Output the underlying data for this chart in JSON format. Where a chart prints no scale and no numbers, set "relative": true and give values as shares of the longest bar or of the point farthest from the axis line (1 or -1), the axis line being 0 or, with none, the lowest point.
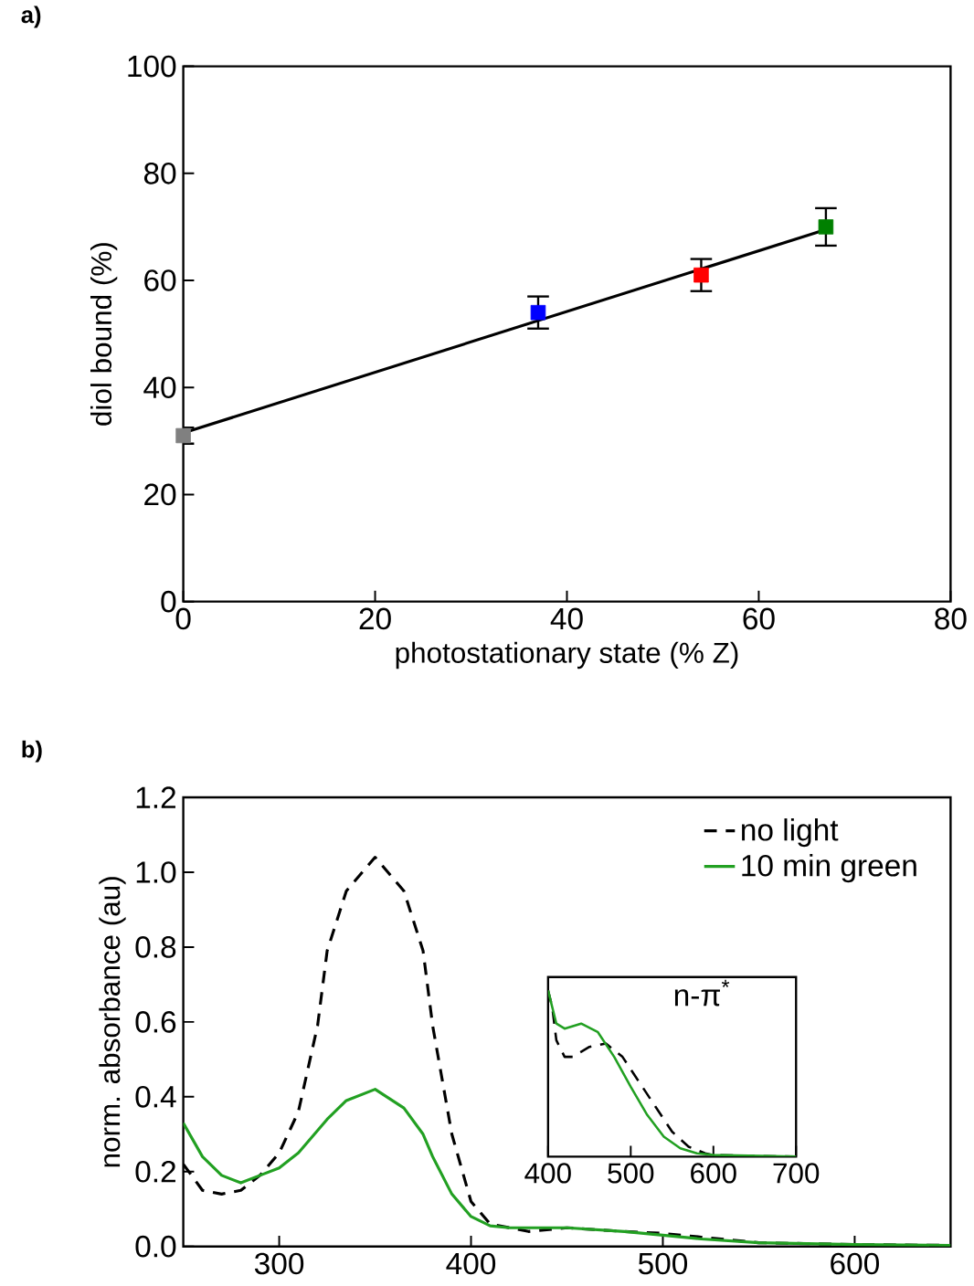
{
  "chart_data": [
    {
      "type": "scatter",
      "title": "a)",
      "xlabel": "photostationary state  (% Z)",
      "ylabel": "diol bound (%)",
      "xlim": [
        0,
        80
      ],
      "ylim": [
        0,
        100
      ],
      "xticks": [
        0,
        20,
        40,
        60,
        80
      ],
      "yticks": [
        0,
        20,
        40,
        60,
        80,
        100
      ],
      "legend": false,
      "x": [
        0,
        37,
        54,
        67
      ],
      "series": [
        {
          "type": "scatter",
          "marker": "square",
          "colors": [
            "#808080",
            "#0000ff",
            "#ff0000",
            "#008000"
          ],
          "values": [
            31,
            54,
            61,
            70
          ],
          "errors": [
            1.5,
            3,
            3,
            3.5
          ]
        },
        {
          "type": "line",
          "color": "#000000",
          "x": [
            0,
            67
          ],
          "values": [
            31.5,
            69.5
          ]
        }
      ]
    },
    {
      "type": "line",
      "title": "b)",
      "ylabel": "norm. absorbance (au)",
      "xlim": [
        250,
        650
      ],
      "ylim": [
        0,
        1.2
      ],
      "xticks": [
        300,
        400,
        500,
        600
      ],
      "yticks": [
        {
          "value": 0,
          "label": "0.0"
        },
        {
          "value": 0.2,
          "label": "0.2"
        },
        {
          "value": 0.4,
          "label": "0.4"
        },
        {
          "value": 0.6,
          "label": "0.6"
        },
        {
          "value": 0.8,
          "label": "0.8"
        },
        {
          "value": 1.0,
          "label": "1.0"
        },
        {
          "value": 1.2,
          "label": "1.2"
        }
      ],
      "legend": "top right",
      "x": [
        250,
        260,
        270,
        280,
        290,
        300,
        310,
        320,
        325,
        335,
        350,
        365,
        375,
        380,
        390,
        400,
        410,
        420,
        430,
        450,
        480,
        500,
        520,
        550,
        600,
        650
      ],
      "series": [
        {
          "name": "no light",
          "color": "#000000",
          "line_style": "dashed",
          "values": [
            0.22,
            0.15,
            0.14,
            0.15,
            0.19,
            0.25,
            0.36,
            0.59,
            0.79,
            0.95,
            1.04,
            0.95,
            0.79,
            0.59,
            0.3,
            0.12,
            0.06,
            0.05,
            0.04,
            0.05,
            0.04,
            0.035,
            0.025,
            0.01,
            0.005,
            0.003
          ]
        },
        {
          "name": "10 min green",
          "color": "#22a022",
          "line_style": "solid",
          "values": [
            0.33,
            0.24,
            0.19,
            0.17,
            0.19,
            0.21,
            0.25,
            0.31,
            0.34,
            0.39,
            0.42,
            0.37,
            0.3,
            0.24,
            0.14,
            0.08,
            0.055,
            0.05,
            0.05,
            0.05,
            0.04,
            0.03,
            0.02,
            0.01,
            0.005,
            0.003
          ]
        }
      ]
    },
    {
      "type": "line",
      "title": "n-π$^{*}$",
      "relative": true,
      "tick_labels": "x",
      "xlim": [
        400,
        700
      ],
      "xticks": [
        400,
        500,
        600,
        700
      ],
      "legend": false,
      "series": [
        {
          "color": "#000000",
          "line_style": "dashed",
          "x": [
            400,
            405,
            410,
            420,
            430,
            450,
            470,
            490,
            510,
            530,
            550,
            570,
            590,
            600,
            700
          ],
          "values": [
            1.0,
            0.9,
            0.7,
            0.6,
            0.6,
            0.66,
            0.68,
            0.6,
            0.45,
            0.3,
            0.15,
            0.06,
            0.02,
            0.01,
            0.0
          ]
        },
        {
          "color": "#22a022",
          "line_style": "solid",
          "x": [
            400,
            410,
            420,
            440,
            460,
            480,
            500,
            520,
            540,
            560,
            580,
            600,
            700
          ],
          "values": [
            1.0,
            0.8,
            0.77,
            0.8,
            0.75,
            0.6,
            0.42,
            0.25,
            0.12,
            0.05,
            0.02,
            0.01,
            0.0
          ]
        }
      ]
    }
  ]
}
